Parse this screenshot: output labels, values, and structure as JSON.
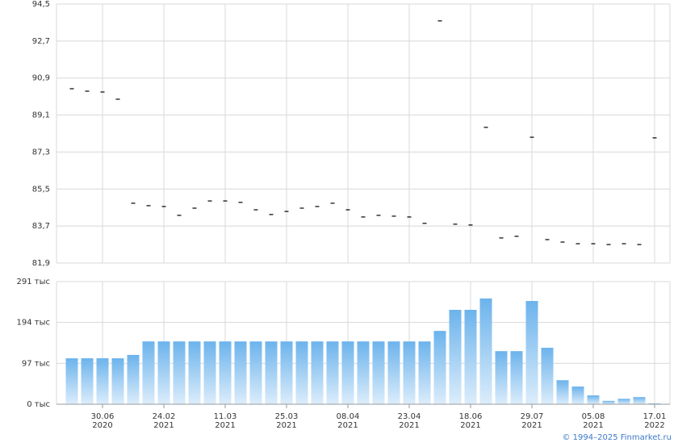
{
  "chart_data": [
    {
      "type": "scatter",
      "marker": "dash",
      "color": "#000000",
      "values": [
        90.38,
        90.26,
        90.22,
        89.87,
        84.81,
        84.69,
        84.65,
        84.22,
        84.57,
        84.92,
        84.92,
        84.85,
        84.49,
        84.26,
        84.41,
        84.57,
        84.65,
        84.81,
        84.49,
        84.14,
        84.22,
        84.18,
        84.14,
        83.83,
        93.68,
        83.79,
        83.75,
        88.5,
        83.12,
        83.2,
        88.02,
        83.04,
        82.92,
        82.84,
        82.84,
        82.8,
        82.84,
        82.8,
        87.99
      ],
      "ylim": [
        81.9,
        94.5
      ],
      "yticks": [
        {
          "value": 81.9,
          "label": "81,9"
        },
        {
          "value": 83.7,
          "label": "83,7"
        },
        {
          "value": 85.5,
          "label": "85,5"
        },
        {
          "value": 87.3,
          "label": "87,3"
        },
        {
          "value": 89.1,
          "label": "89,1"
        },
        {
          "value": 90.9,
          "label": "90,9"
        },
        {
          "value": 92.7,
          "label": "92,7"
        },
        {
          "value": 94.5,
          "label": "94,5"
        }
      ],
      "grid": true
    },
    {
      "type": "bar",
      "color": "#7bbcee",
      "categories": [
        null,
        null,
        "30.06 2020",
        null,
        null,
        null,
        "24.02 2021",
        null,
        null,
        null,
        "11.03 2021",
        null,
        null,
        null,
        "25.03 2021",
        null,
        null,
        null,
        "08.04 2021",
        null,
        null,
        null,
        "23.04 2021",
        null,
        null,
        null,
        "18.06 2021",
        null,
        null,
        null,
        "29.07 2021",
        null,
        null,
        null,
        "05.08 2021",
        null,
        null,
        null,
        "17.01 2022"
      ],
      "values": [
        109,
        109,
        109,
        109,
        117,
        149,
        149,
        149,
        149,
        149,
        149,
        149,
        149,
        149,
        149,
        149,
        149,
        149,
        149,
        149,
        149,
        149,
        149,
        149,
        174,
        224,
        224,
        251,
        126,
        126,
        245,
        134,
        57,
        42,
        21,
        8,
        13,
        17,
        2
      ],
      "ylim": [
        0,
        291
      ],
      "yticks": [
        {
          "value": 0,
          "label": "0 тыс"
        },
        {
          "value": 97,
          "label": "97 тыс"
        },
        {
          "value": 194,
          "label": "194 тыс"
        },
        {
          "value": 291,
          "label": "291 тыс"
        }
      ],
      "grid": true
    }
  ],
  "footer": "© 1994–2025 Finmarket.ru"
}
